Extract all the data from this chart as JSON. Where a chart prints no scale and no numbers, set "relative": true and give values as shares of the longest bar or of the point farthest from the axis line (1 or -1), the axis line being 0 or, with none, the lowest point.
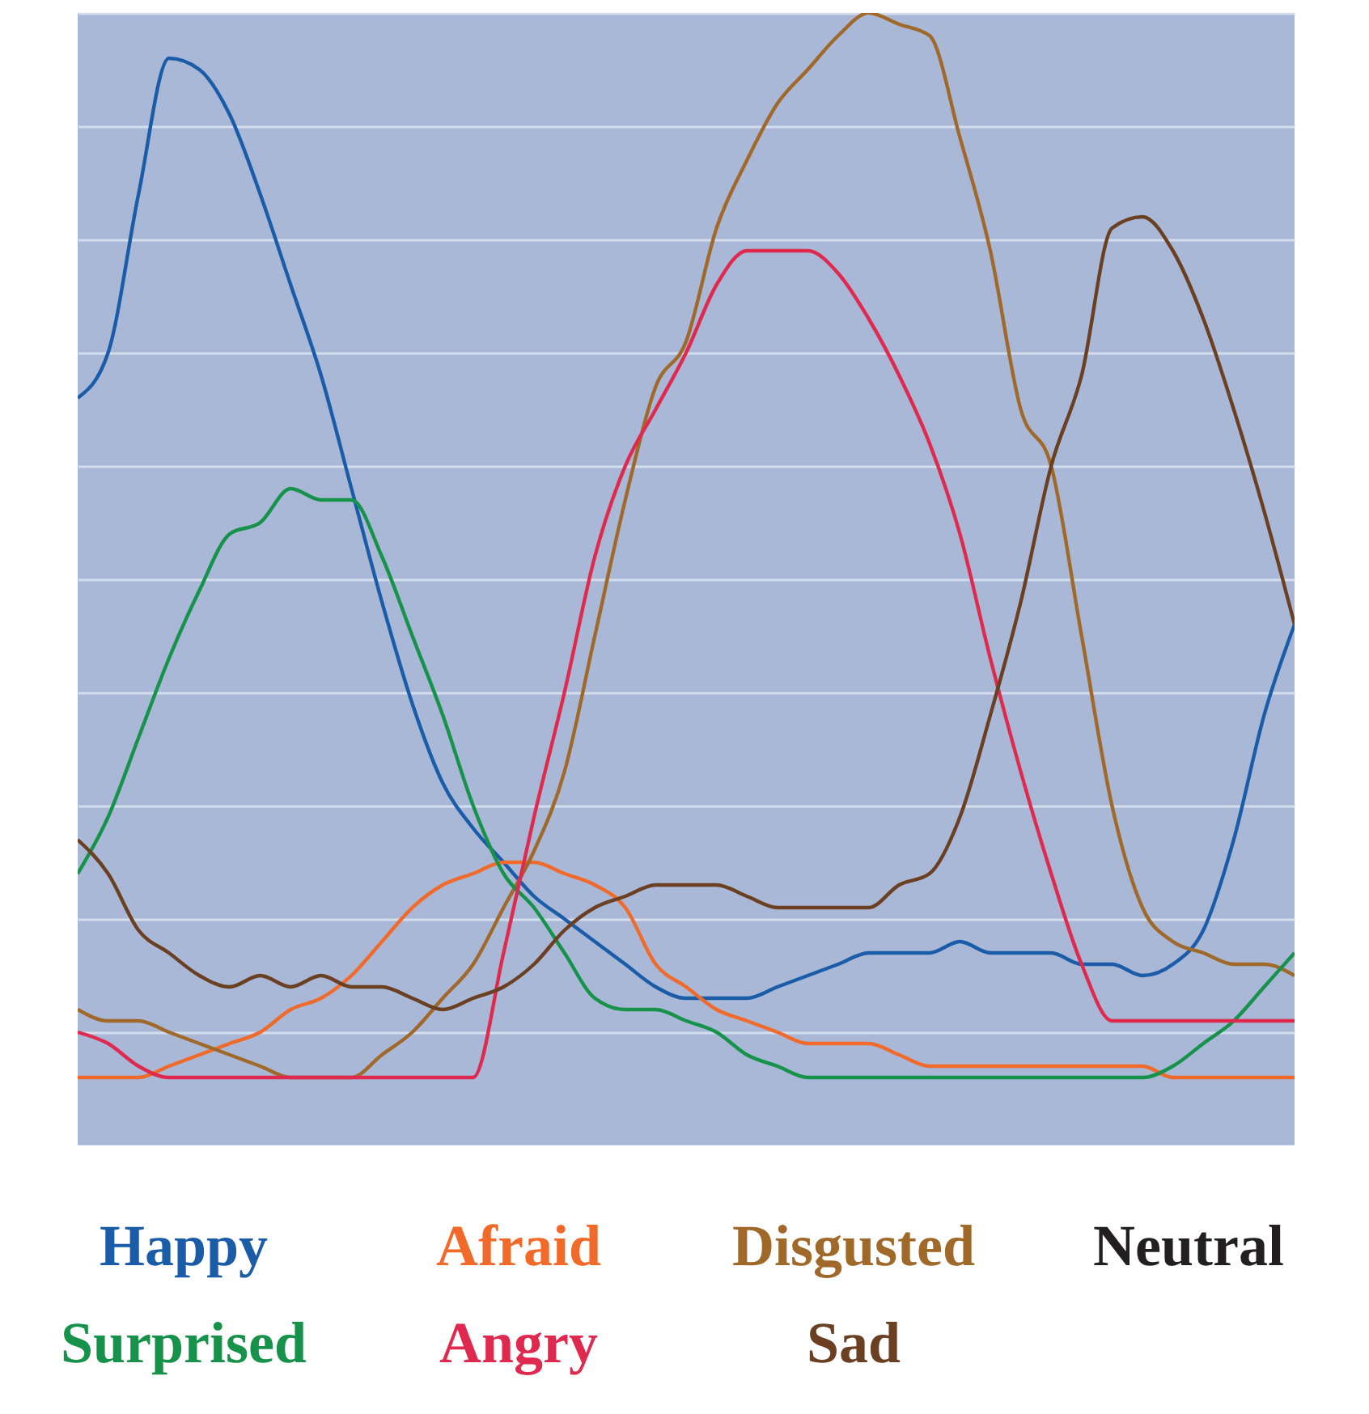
{
  "chart_data": {
    "type": "line",
    "relative": true,
    "grid": "y",
    "legend": "bottom",
    "line_style": "solid",
    "categories": [
      null,
      null,
      null,
      null,
      null,
      null,
      null,
      null,
      null,
      null,
      null,
      null,
      null,
      null,
      null,
      null,
      null,
      null,
      null,
      null,
      null,
      null,
      null,
      null,
      null,
      null,
      null,
      null,
      null,
      null,
      null,
      null,
      null,
      null,
      null,
      null,
      null,
      null,
      null,
      null,
      null
    ],
    "series": [
      {
        "name": "Happy",
        "color": "#1a5ca8",
        "values": [
          0.66,
          0.7,
          0.84,
          0.96,
          0.95,
          0.91,
          0.84,
          0.76,
          0.68,
          0.58,
          0.48,
          0.39,
          0.32,
          0.28,
          0.25,
          0.22,
          0.2,
          0.18,
          0.16,
          0.14,
          0.13,
          0.13,
          0.13,
          0.14,
          0.15,
          0.16,
          0.17,
          0.17,
          0.17,
          0.18,
          0.17,
          0.17,
          0.17,
          0.16,
          0.16,
          0.15,
          0.16,
          0.19,
          0.27,
          0.38,
          0.46
        ]
      },
      {
        "name": "Afraid",
        "color": "#f26a2a",
        "values": [
          0.06,
          0.06,
          0.06,
          0.07,
          0.08,
          0.09,
          0.1,
          0.12,
          0.13,
          0.15,
          0.18,
          0.21,
          0.23,
          0.24,
          0.25,
          0.25,
          0.24,
          0.23,
          0.21,
          0.16,
          0.14,
          0.12,
          0.11,
          0.1,
          0.09,
          0.09,
          0.09,
          0.08,
          0.07,
          0.07,
          0.07,
          0.07,
          0.07,
          0.07,
          0.07,
          0.07,
          0.06,
          0.06,
          0.06,
          0.06,
          0.06
        ]
      },
      {
        "name": "Disgusted",
        "color": "#a0692a",
        "values": [
          0.12,
          0.11,
          0.11,
          0.1,
          0.09,
          0.08,
          0.07,
          0.06,
          0.06,
          0.06,
          0.08,
          0.1,
          0.13,
          0.16,
          0.21,
          0.26,
          0.33,
          0.45,
          0.57,
          0.67,
          0.71,
          0.81,
          0.87,
          0.92,
          0.95,
          0.98,
          1,
          0.99,
          0.98,
          0.89,
          0.79,
          0.65,
          0.6,
          0.45,
          0.3,
          0.21,
          0.18,
          0.17,
          0.16,
          0.16,
          0.15
        ]
      },
      {
        "name": "Neutral",
        "color": "#231f20",
        "values": [
          null,
          null,
          null,
          null,
          null,
          null,
          null,
          null,
          null,
          null,
          null,
          null,
          null,
          null,
          null,
          null,
          null,
          null,
          null,
          null,
          null,
          null,
          null,
          null,
          null,
          null,
          null,
          null,
          null,
          null,
          null,
          null,
          null,
          null,
          null,
          null,
          null,
          null,
          null,
          null,
          null
        ]
      },
      {
        "name": "Surprised",
        "color": "#17924a",
        "values": [
          0.24,
          0.29,
          0.36,
          0.43,
          0.49,
          0.54,
          0.55,
          0.58,
          0.57,
          0.57,
          0.52,
          0.45,
          0.38,
          0.3,
          0.24,
          0.21,
          0.17,
          0.13,
          0.12,
          0.12,
          0.11,
          0.1,
          0.08,
          0.07,
          0.06,
          0.06,
          0.06,
          0.06,
          0.06,
          0.06,
          0.06,
          0.06,
          0.06,
          0.06,
          0.06,
          0.06,
          0.07,
          0.09,
          0.11,
          0.14,
          0.17
        ]
      },
      {
        "name": "Angry",
        "color": "#e0294f",
        "values": [
          0.1,
          0.09,
          0.07,
          0.06,
          0.06,
          0.06,
          0.06,
          0.06,
          0.06,
          0.06,
          0.06,
          0.06,
          0.06,
          0.06,
          0.17,
          0.29,
          0.4,
          0.52,
          0.6,
          0.65,
          0.7,
          0.76,
          0.79,
          0.79,
          0.79,
          0.77,
          0.73,
          0.68,
          0.62,
          0.54,
          0.43,
          0.33,
          0.24,
          0.16,
          0.11,
          0.11,
          0.11,
          0.11,
          0.11,
          0.11,
          0.11
        ]
      },
      {
        "name": "Sad",
        "color": "#6b3f22",
        "values": [
          0.27,
          0.24,
          0.19,
          0.17,
          0.15,
          0.14,
          0.15,
          0.14,
          0.15,
          0.14,
          0.14,
          0.13,
          0.12,
          0.13,
          0.14,
          0.16,
          0.19,
          0.21,
          0.22,
          0.23,
          0.23,
          0.23,
          0.22,
          0.21,
          0.21,
          0.21,
          0.21,
          0.23,
          0.24,
          0.29,
          0.38,
          0.48,
          0.6,
          0.68,
          0.81,
          0.82,
          0.79,
          0.73,
          0.65,
          0.56,
          0.46
        ]
      }
    ]
  }
}
